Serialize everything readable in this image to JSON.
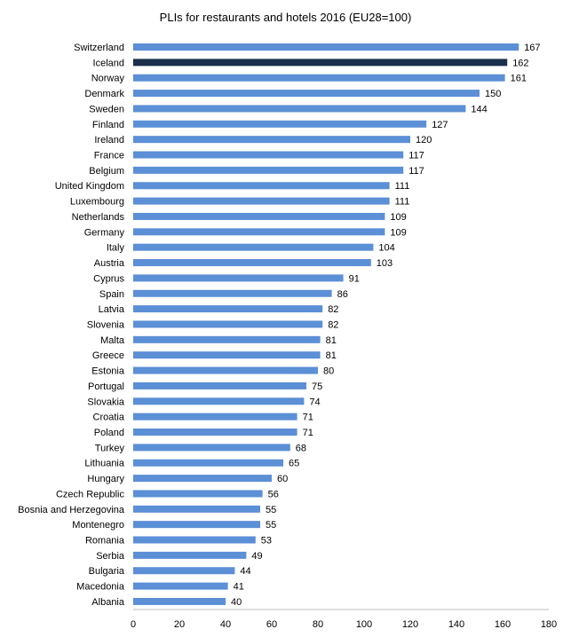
{
  "chart_data": {
    "type": "bar",
    "orientation": "horizontal",
    "title": "PLIs for  restaurants and hotels 2016 (EU28=100)",
    "categories": [
      "Switzerland",
      "Iceland",
      "Norway",
      "Denmark",
      "Sweden",
      "Finland",
      "Ireland",
      "France",
      "Belgium",
      "United Kingdom",
      "Luxembourg",
      "Netherlands",
      "Germany",
      "Italy",
      "Austria",
      "Cyprus",
      "Spain",
      "Latvia",
      "Slovenia",
      "Malta",
      "Greece",
      "Estonia",
      "Portugal",
      "Slovakia",
      "Croatia",
      "Poland",
      "Turkey",
      "Lithuania",
      "Hungary",
      "Czech Republic",
      "Bosnia and Herzegovina",
      "Montenegro",
      "Romania",
      "Serbia",
      "Bulgaria",
      "Macedonia",
      "Albania"
    ],
    "values": [
      167,
      162,
      161,
      150,
      144,
      127,
      120,
      117,
      117,
      111,
      111,
      109,
      109,
      104,
      103,
      91,
      86,
      82,
      82,
      81,
      81,
      80,
      75,
      74,
      71,
      71,
      68,
      65,
      60,
      56,
      55,
      55,
      53,
      49,
      44,
      41,
      40
    ],
    "highlight": "Iceland",
    "xlim": [
      0,
      180
    ],
    "xticks": [
      0,
      20,
      40,
      60,
      80,
      100,
      120,
      140,
      160,
      180
    ],
    "grid": false,
    "colors": {
      "bar": "#5b8fd6",
      "highlight": "#1a2f4a",
      "axis": "#bfbfbf"
    }
  }
}
